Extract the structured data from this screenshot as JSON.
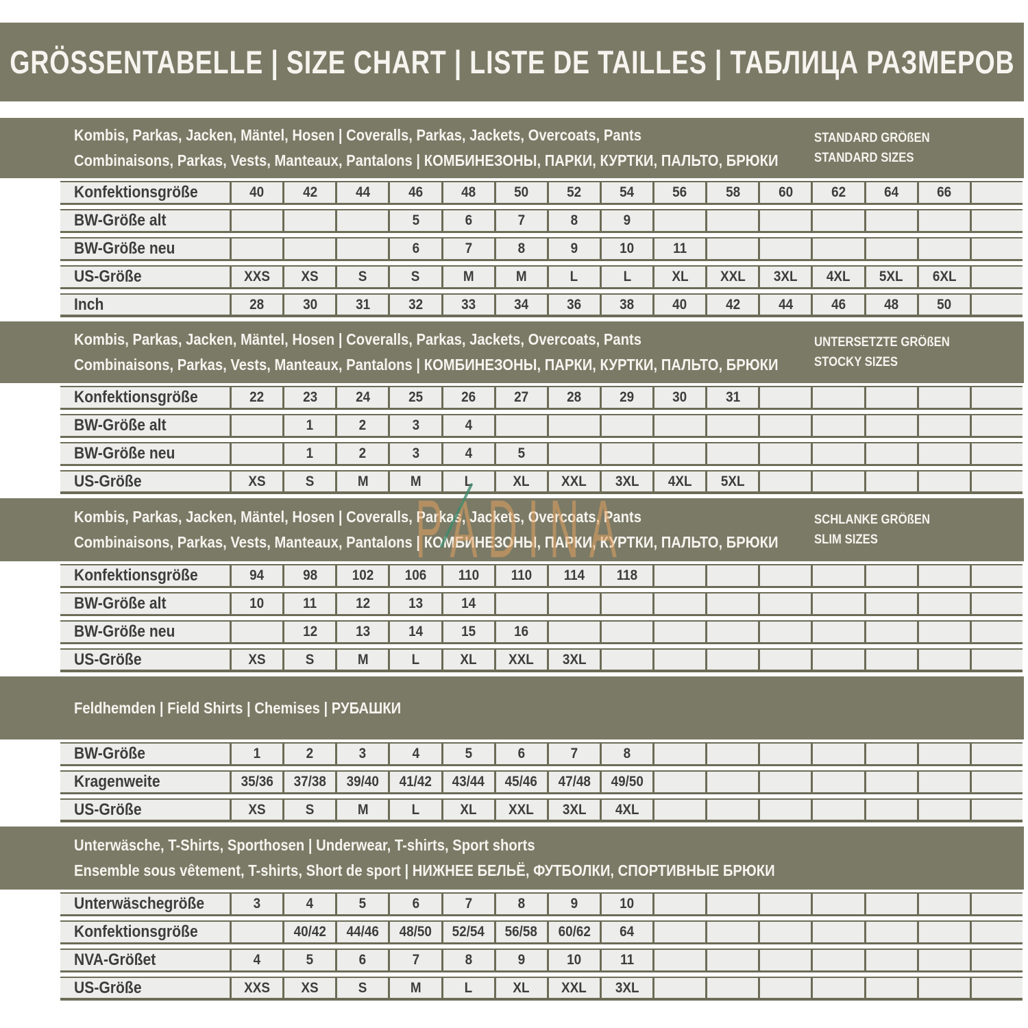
{
  "title": "GRÖSSENTABELLE | SIZE CHART | LISTE DE TAILLES | ТАБЛИЦА РАЗМЕРОВ",
  "watermark": {
    "text": "PADINA"
  },
  "palette": {
    "olive": "#7A7A66",
    "border": "#6C6C57",
    "row_bg": "#EDEDEB",
    "cell_text": "#3D3D3D",
    "band_text": "#F5F4EF",
    "watermark_orange": "rgba(226,160,95,0.55)",
    "watermark_green": "rgba(62,138,108,0.8)"
  },
  "sections": [
    {
      "name": "standard-sizes",
      "header_lines": [
        "Kombis, Parkas, Jacken, Mäntel, Hosen | Coveralls, Parkas, Jackets, Overcoats, Pants",
        "Combinaisons, Parkas, Vests, Manteaux, Pantalons | КОМБИНЕЗОНЫ, ПАРКИ, КУРТКИ, ПАЛЬТО, БРЮКИ"
      ],
      "right_lines": [
        "STANDARD GRÖßEN",
        "STANDARD SIZES"
      ],
      "rows": [
        {
          "label": "Konfektionsgröße",
          "cells": [
            "40",
            "42",
            "44",
            "46",
            "48",
            "50",
            "52",
            "54",
            "56",
            "58",
            "60",
            "62",
            "64",
            "66",
            ""
          ]
        },
        {
          "label": "BW-Größe alt",
          "cells": [
            "",
            "",
            "",
            "5",
            "6",
            "7",
            "8",
            "9",
            "",
            "",
            "",
            "",
            "",
            "",
            ""
          ]
        },
        {
          "label": "BW-Größe neu",
          "cells": [
            "",
            "",
            "",
            "6",
            "7",
            "8",
            "9",
            "10",
            "11",
            "",
            "",
            "",
            "",
            "",
            ""
          ]
        },
        {
          "label": "US-Größe",
          "cells": [
            "XXS",
            "XS",
            "S",
            "S",
            "M",
            "M",
            "L",
            "L",
            "XL",
            "XXL",
            "3XL",
            "4XL",
            "5XL",
            "6XL",
            ""
          ]
        },
        {
          "label": "Inch",
          "cells": [
            "28",
            "30",
            "31",
            "32",
            "33",
            "34",
            "36",
            "38",
            "40",
            "42",
            "44",
            "46",
            "48",
            "50",
            ""
          ]
        }
      ]
    },
    {
      "name": "stocky-sizes",
      "header_lines": [
        "Kombis, Parkas, Jacken, Mäntel, Hosen | Coveralls, Parkas, Jackets, Overcoats, Pants",
        "Combinaisons, Parkas, Vests, Manteaux, Pantalons | КОМБИНЕЗОНЫ, ПАРКИ, КУРТКИ, ПАЛЬТО, БРЮКИ"
      ],
      "right_lines": [
        "UNTERSETZTE GRÖßEN",
        "STOCKY SIZES"
      ],
      "rows": [
        {
          "label": "Konfektionsgröße",
          "cells": [
            "22",
            "23",
            "24",
            "25",
            "26",
            "27",
            "28",
            "29",
            "30",
            "31",
            "",
            "",
            "",
            "",
            ""
          ]
        },
        {
          "label": "BW-Größe alt",
          "cells": [
            "",
            "1",
            "2",
            "3",
            "4",
            "",
            "",
            "",
            "",
            "",
            "",
            "",
            "",
            "",
            ""
          ]
        },
        {
          "label": "BW-Größe neu",
          "cells": [
            "",
            "1",
            "2",
            "3",
            "4",
            "5",
            "",
            "",
            "",
            "",
            "",
            "",
            "",
            "",
            ""
          ]
        },
        {
          "label": "US-Größe",
          "cells": [
            "XS",
            "S",
            "M",
            "M",
            "L",
            "XL",
            "XXL",
            "3XL",
            "4XL",
            "5XL",
            "",
            "",
            "",
            "",
            ""
          ]
        }
      ]
    },
    {
      "name": "slim-sizes",
      "header_lines": [
        "Kombis, Parkas, Jacken, Mäntel, Hosen | Coveralls, Parkas, Jackets, Overcoats, Pants",
        "Combinaisons, Parkas, Vests, Manteaux, Pantalons | КОМБИНЕЗОНЫ, ПАРКИ, КУРТКИ, ПАЛЬТО, БРЮКИ"
      ],
      "right_lines": [
        "SCHLANKE GRÖßEN",
        "SLIM SIZES"
      ],
      "rows": [
        {
          "label": "Konfektionsgröße",
          "cells": [
            "94",
            "98",
            "102",
            "106",
            "110",
            "110",
            "114",
            "118",
            "",
            "",
            "",
            "",
            "",
            "",
            ""
          ]
        },
        {
          "label": "BW-Größe alt",
          "cells": [
            "10",
            "11",
            "12",
            "13",
            "14",
            "",
            "",
            "",
            "",
            "",
            "",
            "",
            "",
            "",
            ""
          ]
        },
        {
          "label": "BW-Größe neu",
          "cells": [
            "",
            "12",
            "13",
            "14",
            "15",
            "16",
            "",
            "",
            "",
            "",
            "",
            "",
            "",
            "",
            ""
          ]
        },
        {
          "label": "US-Größe",
          "cells": [
            "XS",
            "S",
            "M",
            "L",
            "XL",
            "XXL",
            "3XL",
            "",
            "",
            "",
            "",
            "",
            "",
            "",
            ""
          ]
        }
      ]
    },
    {
      "name": "field-shirts",
      "header_lines": [
        "Feldhemden | Field Shirts | Chemises | РУБАШКИ"
      ],
      "right_lines": [],
      "rows": [
        {
          "label": "BW-Größe",
          "cells": [
            "1",
            "2",
            "3",
            "4",
            "5",
            "6",
            "7",
            "8",
            "",
            "",
            "",
            "",
            "",
            "",
            ""
          ]
        },
        {
          "label": "Kragenweite",
          "cells": [
            "35/36",
            "37/38",
            "39/40",
            "41/42",
            "43/44",
            "45/46",
            "47/48",
            "49/50",
            "",
            "",
            "",
            "",
            "",
            "",
            ""
          ]
        },
        {
          "label": "US-Größe",
          "cells": [
            "XS",
            "S",
            "M",
            "L",
            "XL",
            "XXL",
            "3XL",
            "4XL",
            "",
            "",
            "",
            "",
            "",
            "",
            ""
          ]
        }
      ]
    },
    {
      "name": "underwear",
      "header_lines": [
        "Unterwäsche, T-Shirts, Sporthosen | Underwear, T-shirts, Sport shorts",
        "Ensemble sous vêtement, T-shirts, Short de sport | НИЖНЕЕ БЕЛЬЁ, ФУТБОЛКИ, СПОРТИВНЫЕ БРЮКИ"
      ],
      "right_lines": [],
      "rows": [
        {
          "label": "Unterwäschegröße",
          "cells": [
            "3",
            "4",
            "5",
            "6",
            "7",
            "8",
            "9",
            "10",
            "",
            "",
            "",
            "",
            "",
            "",
            ""
          ]
        },
        {
          "label": "Konfektionsgröße",
          "cells": [
            "",
            "40/42",
            "44/46",
            "48/50",
            "52/54",
            "56/58",
            "60/62",
            "64",
            "",
            "",
            "",
            "",
            "",
            "",
            ""
          ]
        },
        {
          "label": "NVA-Größet",
          "cells": [
            "4",
            "5",
            "6",
            "7",
            "8",
            "9",
            "10",
            "11",
            "",
            "",
            "",
            "",
            "",
            "",
            ""
          ]
        },
        {
          "label": "US-Größe",
          "cells": [
            "XXS",
            "XS",
            "S",
            "M",
            "L",
            "XL",
            "XXL",
            "3XL",
            "",
            "",
            "",
            "",
            "",
            "",
            ""
          ]
        }
      ]
    }
  ]
}
